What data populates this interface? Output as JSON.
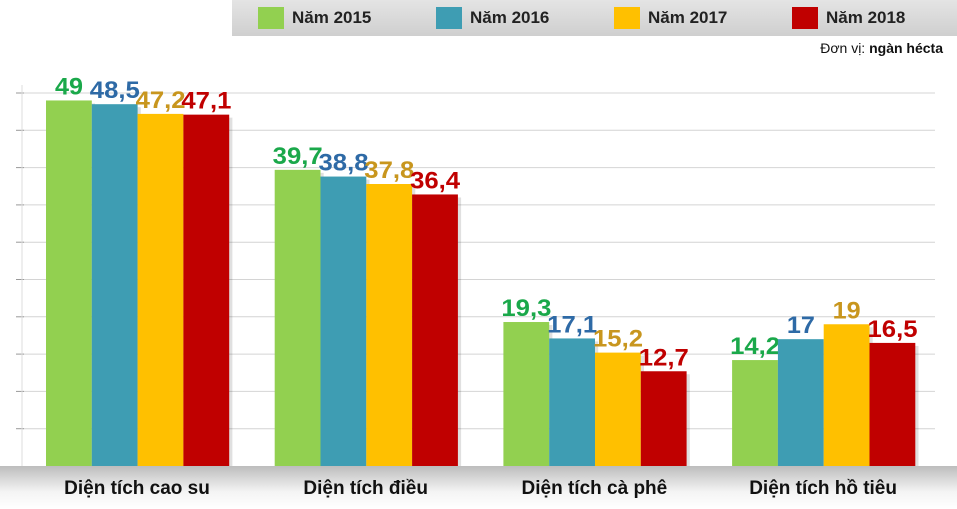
{
  "chart_data": {
    "type": "bar",
    "title": "",
    "unit_label": "Đơn vị: ",
    "unit_value": "ngàn hécta",
    "categories": [
      "Diện tích cao su",
      "Diện tích điều",
      "Diện tích cà phê",
      "Diện tích hồ tiêu"
    ],
    "series": [
      {
        "name": "Năm 2015",
        "color": "#92d050",
        "label_color": "#1aa84a",
        "values": [
          49,
          39.7,
          19.3,
          14.2
        ],
        "labels": [
          "49",
          "39,7",
          "19,3",
          "14,2"
        ]
      },
      {
        "name": "Năm 2016",
        "color": "#3e9db3",
        "label_color": "#2e6aa6",
        "values": [
          48.5,
          38.8,
          17.1,
          17
        ],
        "labels": [
          "48,5",
          "38,8",
          "17,1",
          "17"
        ]
      },
      {
        "name": "Năm 2017",
        "color": "#ffc000",
        "label_color": "#c8961e",
        "values": [
          47.2,
          37.8,
          15.2,
          19
        ],
        "labels": [
          "47,2",
          "37,8",
          "15,2",
          "19"
        ]
      },
      {
        "name": "Năm 2018",
        "color": "#c00000",
        "label_color": "#c00000",
        "values": [
          47.1,
          36.4,
          12.7,
          16.5
        ],
        "labels": [
          "47,1",
          "36,4",
          "12,7",
          "16,5"
        ]
      }
    ],
    "ylim": [
      0,
      50
    ],
    "grid_step": 5,
    "grid": true,
    "legend_position": "top-right"
  }
}
